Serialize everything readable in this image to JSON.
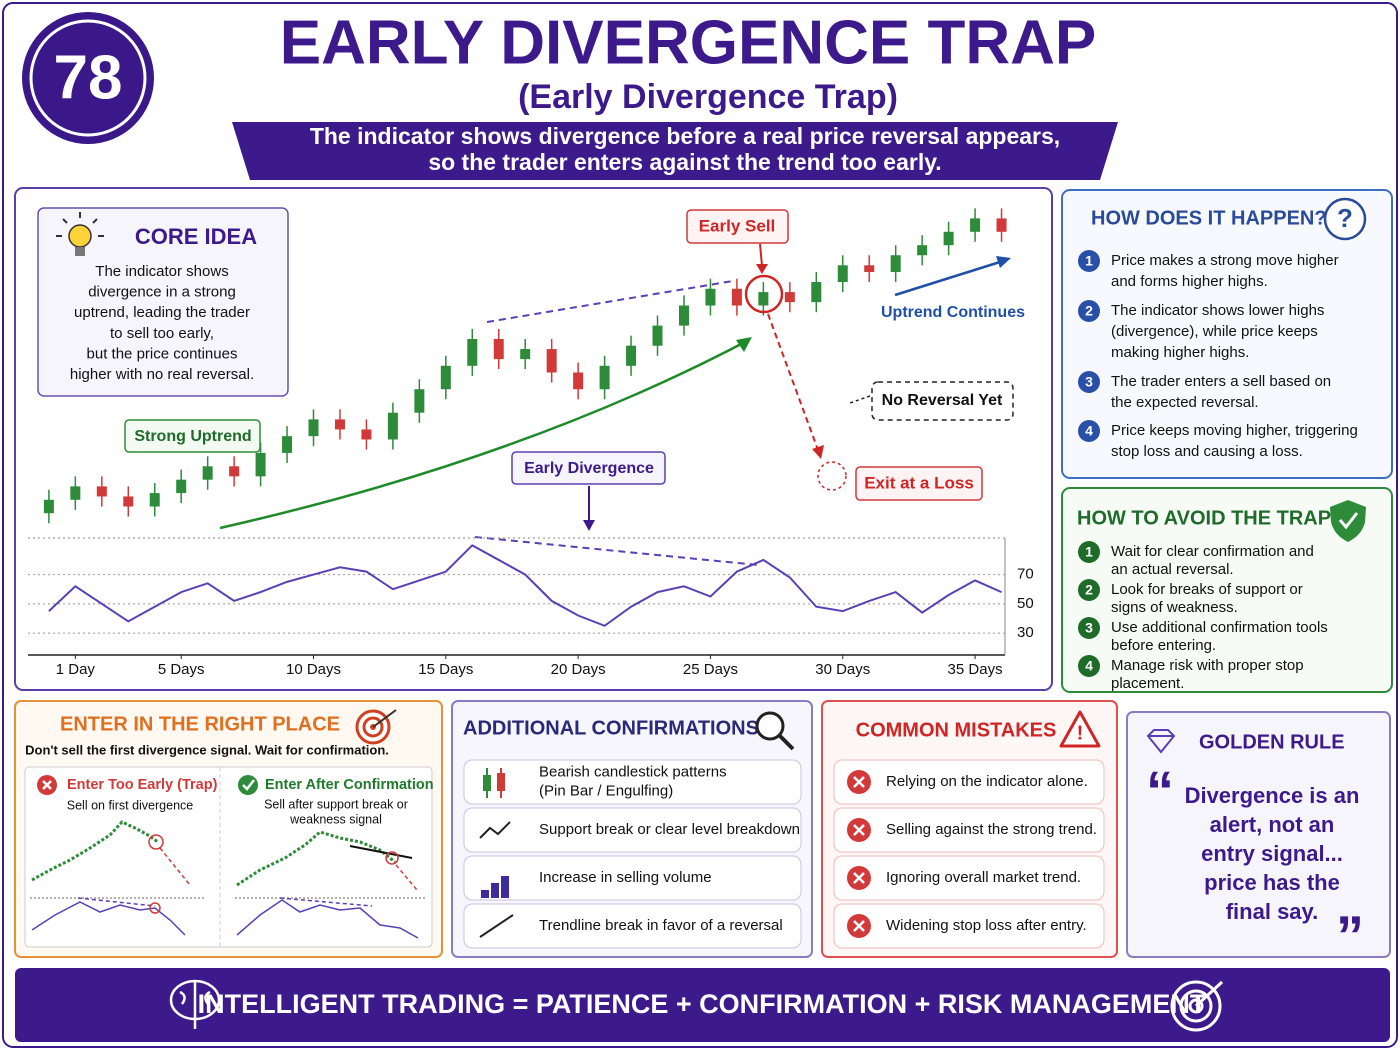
{
  "badge": "78",
  "title": "EARLY DIVERGENCE TRAP",
  "subtitle": "(Early Divergence Trap)",
  "banner": [
    "The indicator shows divergence before a real price reversal appears,",
    "so the trader enters against the trend too early."
  ],
  "core_idea": {
    "title": "CORE IDEA",
    "lines": [
      "The indicator shows",
      "divergence in a strong",
      "uptrend, leading the trader",
      "to sell too early,",
      "but the price continues",
      "higher with no real reversal."
    ]
  },
  "chart_data": [
    {
      "type": "candlestick",
      "x": [
        0,
        1,
        2,
        3,
        4,
        5,
        6,
        7,
        8,
        9,
        10,
        11,
        12,
        13,
        14,
        15,
        16,
        17,
        18,
        19,
        20,
        21,
        22,
        23,
        24,
        25,
        26,
        27,
        28,
        29,
        30,
        31,
        32,
        33,
        34,
        35,
        36
      ],
      "open": [
        8,
        12,
        16,
        13,
        10,
        14,
        18,
        22,
        19,
        26,
        31,
        36,
        33,
        30,
        38,
        45,
        52,
        60,
        54,
        57,
        50,
        45,
        52,
        58,
        64,
        70,
        75,
        70,
        74,
        71,
        77,
        82,
        80,
        85,
        88,
        92,
        96
      ],
      "high": [
        15,
        19,
        19,
        16,
        17,
        21,
        25,
        25,
        29,
        34,
        39,
        39,
        36,
        41,
        48,
        55,
        63,
        63,
        60,
        60,
        53,
        55,
        61,
        67,
        73,
        78,
        78,
        77,
        77,
        80,
        85,
        85,
        88,
        91,
        95,
        99,
        99
      ],
      "low": [
        5,
        9,
        10,
        7,
        7,
        11,
        15,
        16,
        16,
        23,
        28,
        30,
        27,
        27,
        35,
        42,
        49,
        51,
        51,
        47,
        42,
        42,
        49,
        55,
        61,
        67,
        67,
        67,
        68,
        68,
        74,
        77,
        77,
        82,
        85,
        89,
        89
      ],
      "close": [
        12,
        16,
        13,
        10,
        14,
        18,
        22,
        19,
        26,
        31,
        36,
        33,
        30,
        38,
        45,
        52,
        60,
        54,
        57,
        50,
        45,
        52,
        58,
        64,
        70,
        75,
        70,
        74,
        71,
        77,
        82,
        80,
        85,
        88,
        92,
        96,
        92
      ],
      "up_color": "#2e8b3a",
      "down_color": "#d23a3a",
      "xlim": [
        -0.6,
        37
      ],
      "ylim": [
        0,
        100
      ],
      "annotations": {
        "strong_uptrend": "Strong Uptrend",
        "early_divergence": "Early Divergence",
        "early_sell": "Early Sell",
        "uptrend_continues": "Uptrend Continues",
        "no_reversal": "No Reversal Yet",
        "exit_loss": "Exit at a Loss"
      }
    },
    {
      "type": "line",
      "x": [
        0,
        1,
        2,
        3,
        4,
        5,
        6,
        7,
        8,
        9,
        10,
        11,
        12,
        13,
        14,
        15,
        16,
        17,
        18,
        19,
        20,
        21,
        22,
        23,
        24,
        25,
        26,
        27,
        28,
        29,
        30,
        31,
        32,
        33,
        34,
        35,
        36
      ],
      "series": [
        {
          "color": "#5b3fb5",
          "values": [
            45,
            62,
            50,
            38,
            48,
            58,
            64,
            52,
            58,
            65,
            70,
            75,
            72,
            60,
            66,
            72,
            90,
            80,
            70,
            52,
            42,
            35,
            48,
            58,
            62,
            55,
            72,
            80,
            68,
            48,
            45,
            52,
            58,
            44,
            56,
            66,
            58
          ]
        }
      ],
      "xlim": [
        -0.6,
        37
      ],
      "ylim": [
        15,
        95
      ],
      "yticks": [
        70,
        50,
        30
      ],
      "xticks": [
        {
          "value": 1,
          "label": "1 Day"
        },
        {
          "value": 5,
          "label": "5 Days"
        },
        {
          "value": 10,
          "label": "10 Days"
        },
        {
          "value": 15,
          "label": "15 Days"
        },
        {
          "value": 20,
          "label": "20 Days"
        },
        {
          "value": 25,
          "label": "25 Days"
        },
        {
          "value": 30,
          "label": "30 Days"
        },
        {
          "value": 35,
          "label": "35 Days"
        }
      ],
      "grid": true
    }
  ],
  "how_happen": {
    "title": "HOW DOES IT HAPPEN?",
    "icon": "?",
    "steps": [
      {
        "num": "1",
        "lines": [
          "Price makes a strong move higher",
          "and forms higher highs."
        ]
      },
      {
        "num": "2",
        "lines": [
          "The indicator shows lower highs",
          "(divergence), while price keeps",
          "making higher highs."
        ]
      },
      {
        "num": "3",
        "lines": [
          "The trader enters a sell based on",
          "the expected reversal."
        ]
      },
      {
        "num": "4",
        "lines": [
          "Price keeps moving higher, triggering",
          "stop loss and causing a loss."
        ]
      }
    ]
  },
  "avoid": {
    "title": "HOW TO AVOID THE TRAP?",
    "steps": [
      {
        "num": "1",
        "lines": [
          "Wait for clear confirmation and",
          "an actual reversal."
        ]
      },
      {
        "num": "2",
        "lines": [
          "Look for breaks of support or",
          "signs of weakness."
        ]
      },
      {
        "num": "3",
        "lines": [
          "Use additional confirmation tools",
          "before entering."
        ]
      },
      {
        "num": "4",
        "lines": [
          "Manage risk with proper stop",
          "placement."
        ]
      }
    ]
  },
  "enter": {
    "title": "ENTER IN THE RIGHT PLACE",
    "subtitle": "Don't sell the first divergence signal. Wait for confirmation.",
    "left": {
      "title": "Enter Too Early (Trap)",
      "lines": [
        "Sell on first divergence"
      ]
    },
    "right": {
      "title": "Enter After Confirmation",
      "lines": [
        "Sell after support break or",
        "weakness signal"
      ]
    }
  },
  "confirmations": {
    "title": "ADDITIONAL CONFIRMATIONS",
    "items": [
      [
        "Bearish candlestick patterns",
        "(Pin Bar / Engulfing)"
      ],
      [
        "Support break or clear level breakdown"
      ],
      [
        "Increase in selling volume"
      ],
      [
        "Trendline break in favor of a reversal"
      ]
    ]
  },
  "mistakes": {
    "title": "COMMON MISTAKES",
    "icon": "!",
    "items": [
      "Relying on the indicator alone.",
      "Selling against the strong trend.",
      "Ignoring overall market trend.",
      "Widening stop loss after entry."
    ]
  },
  "golden": {
    "title": "GOLDEN RULE",
    "open_quote": "“",
    "close_quote": "”",
    "lines": [
      "Divergence is an",
      "alert, not an",
      "entry signal...",
      "price has the",
      "final say."
    ]
  },
  "footer": "INTELLIGENT TRADING = PATIENCE + CONFIRMATION + RISK MANAGEMENT"
}
